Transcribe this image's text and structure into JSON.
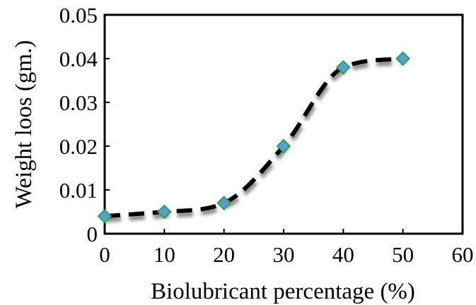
{
  "chart_data": {
    "type": "line",
    "title": "",
    "xlabel": "Biolubricant percentage (%)",
    "ylabel": "Weight loos (gm.)",
    "xlim": [
      0,
      60
    ],
    "ylim": [
      0,
      0.05
    ],
    "x_ticks": [
      "0",
      "10",
      "20",
      "30",
      "40",
      "50",
      "60"
    ],
    "y_ticks": [
      "0",
      "0.01",
      "0.02",
      "0.03",
      "0.04",
      "0.05"
    ],
    "grid": false,
    "legend": "none",
    "series": [
      {
        "x": [
          0,
          10,
          20,
          30,
          40,
          50
        ],
        "y": [
          0.004,
          0.005,
          0.007,
          0.02,
          0.038,
          0.04
        ],
        "marker": "diamond",
        "marker_color": "#5b9bd5",
        "marker_edge_color": "#22aa44",
        "line_style": "dashed-smooth",
        "line_color": "#000000"
      }
    ]
  }
}
